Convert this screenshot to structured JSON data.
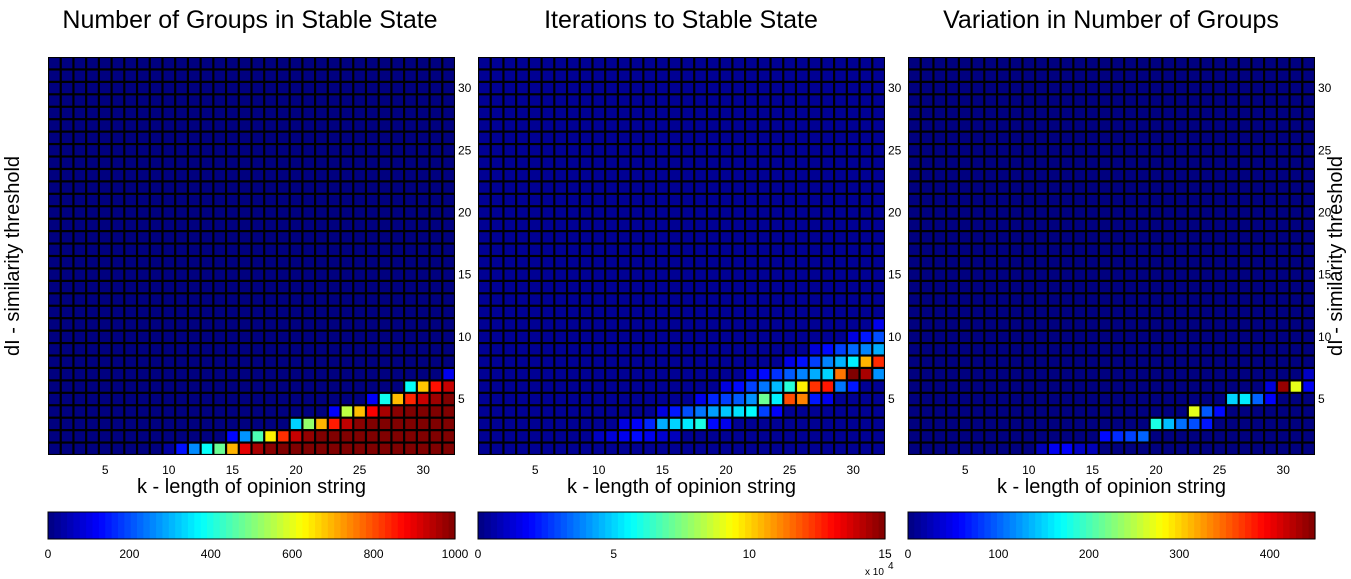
{
  "chart_data": [
    {
      "type": "heatmap",
      "title": "Number of Groups in Stable State",
      "xlabel": "k - length of opinion string",
      "ylabel": "dI - similarity threshold",
      "xlim": [
        1,
        32
      ],
      "ylim": [
        1,
        32
      ],
      "xticks": [
        5,
        10,
        15,
        20,
        25,
        30
      ],
      "yticks": [
        5,
        10,
        15,
        20,
        25,
        30
      ],
      "ytick_side": "right",
      "ylabel_side": "left",
      "colorbar": {
        "min": 0,
        "max": 1000,
        "ticks": [
          0,
          200,
          400,
          600,
          800,
          1000
        ],
        "exponent_label": ""
      },
      "values_desc": "cells listed as [k, dI, value]; all unlisted cells are approximately 0",
      "cells": [
        [
          10,
          1,
          30
        ],
        [
          11,
          1,
          140
        ],
        [
          12,
          1,
          260
        ],
        [
          13,
          1,
          380
        ],
        [
          14,
          1,
          480
        ],
        [
          15,
          1,
          700
        ],
        [
          16,
          1,
          900
        ],
        [
          17,
          1,
          960
        ],
        [
          18,
          1,
          990
        ],
        [
          19,
          1,
          1000
        ],
        [
          20,
          1,
          1000
        ],
        [
          21,
          1,
          1000
        ],
        [
          22,
          1,
          1000
        ],
        [
          23,
          1,
          1000
        ],
        [
          24,
          1,
          1000
        ],
        [
          25,
          1,
          1000
        ],
        [
          26,
          1,
          1000
        ],
        [
          27,
          1,
          1000
        ],
        [
          28,
          1,
          1000
        ],
        [
          29,
          1,
          1000
        ],
        [
          30,
          1,
          1000
        ],
        [
          31,
          1,
          1000
        ],
        [
          32,
          1,
          1000
        ],
        [
          15,
          2,
          130
        ],
        [
          16,
          2,
          270
        ],
        [
          17,
          2,
          450
        ],
        [
          18,
          2,
          640
        ],
        [
          19,
          2,
          830
        ],
        [
          20,
          2,
          930
        ],
        [
          21,
          2,
          980
        ],
        [
          22,
          2,
          1000
        ],
        [
          23,
          2,
          1000
        ],
        [
          24,
          2,
          1000
        ],
        [
          25,
          2,
          1000
        ],
        [
          26,
          2,
          1000
        ],
        [
          27,
          2,
          1000
        ],
        [
          28,
          2,
          1000
        ],
        [
          29,
          2,
          1000
        ],
        [
          30,
          2,
          1000
        ],
        [
          31,
          2,
          1000
        ],
        [
          32,
          2,
          1000
        ],
        [
          20,
          3,
          330
        ],
        [
          21,
          3,
          520
        ],
        [
          22,
          3,
          700
        ],
        [
          23,
          3,
          850
        ],
        [
          24,
          3,
          940
        ],
        [
          25,
          3,
          990
        ],
        [
          26,
          3,
          1000
        ],
        [
          27,
          3,
          1000
        ],
        [
          28,
          3,
          1000
        ],
        [
          29,
          3,
          1000
        ],
        [
          30,
          3,
          1000
        ],
        [
          31,
          3,
          1000
        ],
        [
          32,
          3,
          1000
        ],
        [
          23,
          4,
          120
        ],
        [
          24,
          4,
          560
        ],
        [
          25,
          4,
          690
        ],
        [
          26,
          4,
          880
        ],
        [
          27,
          4,
          960
        ],
        [
          28,
          4,
          990
        ],
        [
          29,
          4,
          1000
        ],
        [
          30,
          4,
          1000
        ],
        [
          31,
          4,
          1000
        ],
        [
          32,
          4,
          1000
        ],
        [
          26,
          5,
          120
        ],
        [
          27,
          5,
          390
        ],
        [
          28,
          5,
          690
        ],
        [
          29,
          5,
          840
        ],
        [
          30,
          5,
          930
        ],
        [
          31,
          5,
          970
        ],
        [
          32,
          5,
          1000
        ],
        [
          29,
          6,
          380
        ],
        [
          30,
          6,
          680
        ],
        [
          31,
          6,
          860
        ],
        [
          32,
          6,
          930
        ],
        [
          32,
          7,
          110
        ]
      ]
    },
    {
      "type": "heatmap",
      "title": "Iterations to Stable State",
      "xlabel": "k - length of opinion string",
      "ylabel": "",
      "xlim": [
        1,
        32
      ],
      "ylim": [
        1,
        32
      ],
      "xticks": [
        5,
        10,
        15,
        20,
        25,
        30
      ],
      "yticks": [
        5,
        10,
        15,
        20,
        25,
        30
      ],
      "ytick_side": "right",
      "ylabel_side": "",
      "colorbar": {
        "min": 0,
        "max": 15,
        "ticks": [
          0,
          5,
          10,
          15
        ],
        "exponent_label": "x 10",
        "exponent_power": "4"
      },
      "values_desc": "cells listed as [k, dI, value in units of 10^4]; background cells are approximately 0.3",
      "cells": [
        [
          10,
          2,
          1.0
        ],
        [
          11,
          2,
          1.3
        ],
        [
          12,
          2,
          1.6
        ],
        [
          13,
          2,
          2.0
        ],
        [
          14,
          2,
          1.6
        ],
        [
          15,
          2,
          1.2
        ],
        [
          16,
          2,
          0.9
        ],
        [
          12,
          3,
          1.4
        ],
        [
          13,
          3,
          1.8
        ],
        [
          14,
          3,
          2.4
        ],
        [
          15,
          3,
          4.4
        ],
        [
          16,
          3,
          5.0
        ],
        [
          17,
          3,
          5.3
        ],
        [
          18,
          3,
          6.0
        ],
        [
          19,
          3,
          2.0
        ],
        [
          20,
          3,
          1.6
        ],
        [
          15,
          4,
          1.4
        ],
        [
          16,
          4,
          2.2
        ],
        [
          17,
          4,
          3.0
        ],
        [
          18,
          4,
          3.6
        ],
        [
          19,
          4,
          4.2
        ],
        [
          20,
          4,
          4.8
        ],
        [
          21,
          4,
          5.2
        ],
        [
          22,
          4,
          5.6
        ],
        [
          23,
          4,
          2.8
        ],
        [
          24,
          4,
          1.8
        ],
        [
          18,
          5,
          1.6
        ],
        [
          19,
          5,
          2.4
        ],
        [
          20,
          5,
          2.8
        ],
        [
          21,
          5,
          3.2
        ],
        [
          22,
          5,
          4.0
        ],
        [
          23,
          5,
          7.2
        ],
        [
          24,
          5,
          5.4
        ],
        [
          25,
          5,
          12.0
        ],
        [
          26,
          5,
          11.2
        ],
        [
          27,
          5,
          2.2
        ],
        [
          28,
          5,
          1.6
        ],
        [
          20,
          6,
          1.4
        ],
        [
          21,
          6,
          2.0
        ],
        [
          22,
          6,
          2.8
        ],
        [
          23,
          6,
          3.6
        ],
        [
          24,
          6,
          4.6
        ],
        [
          25,
          6,
          6.2
        ],
        [
          26,
          6,
          9.6
        ],
        [
          27,
          6,
          12.4
        ],
        [
          28,
          6,
          12.8
        ],
        [
          29,
          6,
          3.6
        ],
        [
          30,
          6,
          2.2
        ],
        [
          22,
          7,
          1.4
        ],
        [
          23,
          7,
          2.0
        ],
        [
          24,
          7,
          2.6
        ],
        [
          25,
          7,
          3.2
        ],
        [
          26,
          7,
          3.8
        ],
        [
          27,
          7,
          4.4
        ],
        [
          28,
          7,
          5.0
        ],
        [
          29,
          7,
          11.4
        ],
        [
          30,
          7,
          15.0
        ],
        [
          31,
          7,
          14.4
        ],
        [
          32,
          7,
          4.0
        ],
        [
          25,
          8,
          1.5
        ],
        [
          26,
          8,
          2.1
        ],
        [
          27,
          8,
          2.8
        ],
        [
          28,
          8,
          3.8
        ],
        [
          29,
          8,
          4.5
        ],
        [
          30,
          8,
          5.4
        ],
        [
          31,
          8,
          10.5
        ],
        [
          32,
          8,
          12.5
        ],
        [
          27,
          9,
          1.3
        ],
        [
          28,
          9,
          2.0
        ],
        [
          29,
          9,
          2.8
        ],
        [
          30,
          9,
          3.4
        ],
        [
          31,
          9,
          3.8
        ],
        [
          32,
          9,
          4.4
        ],
        [
          30,
          10,
          1.4
        ],
        [
          31,
          10,
          2.2
        ],
        [
          32,
          10,
          3.0
        ],
        [
          32,
          11,
          1.6
        ]
      ]
    },
    {
      "type": "heatmap",
      "title": "Variation in Number of Groups",
      "xlabel": "k - length of opinion string",
      "ylabel": "dI - similarity threshold",
      "xlim": [
        1,
        32
      ],
      "ylim": [
        1,
        32
      ],
      "xticks": [
        5,
        10,
        15,
        20,
        25,
        30
      ],
      "yticks": [
        5,
        10,
        15,
        20,
        25,
        30
      ],
      "ytick_side": "right",
      "ylabel_side": "right",
      "colorbar": {
        "min": 0,
        "max": 450,
        "ticks": [
          0,
          100,
          200,
          300,
          400
        ],
        "exponent_label": ""
      },
      "values_desc": "cells listed as [k, dI, value]; all unlisted cells are approximately 0",
      "cells": [
        [
          11,
          1,
          25
        ],
        [
          12,
          1,
          50
        ],
        [
          13,
          1,
          55
        ],
        [
          14,
          1,
          30
        ],
        [
          15,
          1,
          25
        ],
        [
          16,
          2,
          60
        ],
        [
          17,
          2,
          75
        ],
        [
          18,
          2,
          85
        ],
        [
          19,
          2,
          100
        ],
        [
          20,
          3,
          180
        ],
        [
          21,
          3,
          140
        ],
        [
          22,
          3,
          105
        ],
        [
          23,
          3,
          90
        ],
        [
          24,
          3,
          65
        ],
        [
          23,
          4,
          270
        ],
        [
          24,
          4,
          95
        ],
        [
          25,
          4,
          60
        ],
        [
          26,
          5,
          150
        ],
        [
          27,
          5,
          160
        ],
        [
          28,
          5,
          100
        ],
        [
          29,
          5,
          55
        ],
        [
          29,
          6,
          40
        ],
        [
          30,
          6,
          440
        ],
        [
          31,
          6,
          270
        ],
        [
          32,
          6,
          50
        ],
        [
          32,
          7,
          30
        ]
      ]
    }
  ]
}
